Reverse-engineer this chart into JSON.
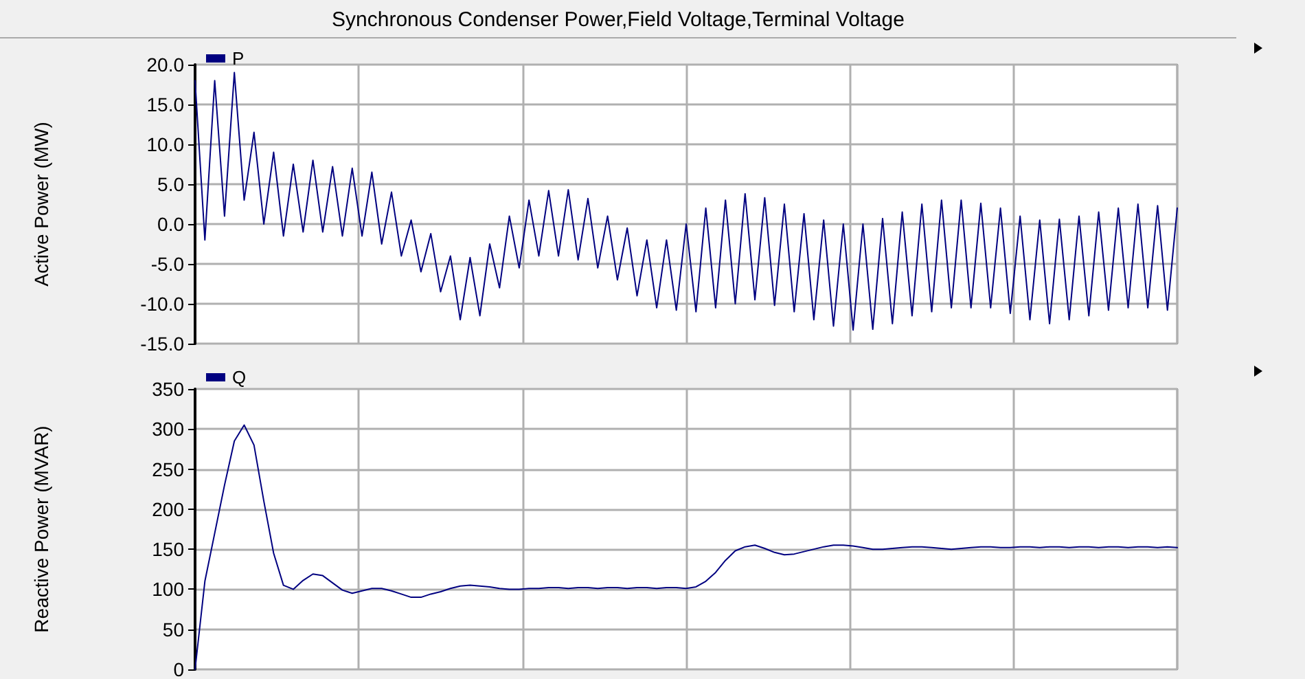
{
  "chart_data": [
    {
      "type": "line",
      "title": "Synchronous Condenser Power,Field Voltage,Terminal Voltage",
      "ylabel": "Active Power (MW)",
      "categories": [
        null,
        null,
        null,
        null,
        null,
        null,
        null,
        null,
        null,
        null,
        null,
        null,
        null,
        null,
        null,
        null,
        null,
        null,
        null,
        null,
        null,
        null,
        null,
        null,
        null,
        null,
        null,
        null,
        null,
        null,
        null,
        null,
        null,
        null,
        null,
        null,
        null,
        null,
        null,
        null,
        null,
        null,
        null,
        null,
        null,
        null,
        null,
        null,
        null,
        null,
        null,
        null,
        null,
        null,
        null,
        null,
        null,
        null,
        null,
        null,
        null,
        null,
        null,
        null,
        null,
        null,
        null,
        null,
        null,
        null,
        null,
        null,
        null,
        null,
        null,
        null,
        null,
        null,
        null,
        null,
        null,
        null,
        null,
        null,
        null,
        null,
        null,
        null,
        null,
        null,
        null,
        null,
        null,
        null,
        null,
        null,
        null,
        null,
        null,
        null,
        null
      ],
      "series": [
        {
          "name": "P",
          "color": "#000080",
          "values": [
            18,
            -2,
            18,
            1,
            19,
            3,
            11.5,
            0,
            9,
            -1.5,
            7.5,
            -1,
            8,
            -1,
            7.2,
            -1.5,
            7,
            -1.5,
            6.5,
            -2.5,
            4,
            -4,
            0.5,
            -6,
            -1.2,
            -8.5,
            -4,
            -12,
            -4.2,
            -11.5,
            -2.5,
            -8,
            1,
            -5.5,
            3,
            -4,
            4.2,
            -4,
            4.3,
            -4.5,
            3.2,
            -5.5,
            1,
            -7,
            -0.5,
            -9,
            -2,
            -10.5,
            -2,
            -10.8,
            0,
            -11,
            2,
            -10.5,
            3,
            -10,
            3.8,
            -9.5,
            3.3,
            -10.2,
            2.5,
            -11,
            1.3,
            -12,
            0.5,
            -12.8,
            0,
            -13.3,
            0,
            -13.2,
            0.7,
            -12.5,
            1.5,
            -11.5,
            2.5,
            -11,
            3,
            -10.5,
            3,
            -10.5,
            2.6,
            -10.5,
            2,
            -11.2,
            1,
            -12,
            0.5,
            -12.5,
            0.6,
            -12,
            1,
            -11.5,
            1.5,
            -10.8,
            2,
            -10.5,
            2.5,
            -10.5,
            2.3,
            -10.8,
            2
          ]
        }
      ],
      "ylim": [
        -15,
        20
      ],
      "yticks": [
        {
          "value": -15,
          "label": "-15.0"
        },
        {
          "value": -10,
          "label": "-10.0"
        },
        {
          "value": -5,
          "label": "-5.0"
        },
        {
          "value": 0,
          "label": "0.0"
        },
        {
          "value": 5,
          "label": "5.0"
        },
        {
          "value": 10,
          "label": "10.0"
        },
        {
          "value": 15,
          "label": "15.0"
        },
        {
          "value": 20,
          "label": "20.0"
        }
      ],
      "tick_labels": "y",
      "grid": true,
      "legend": "top left",
      "marker": "none",
      "line_style": "solid"
    },
    {
      "type": "line",
      "ylabel": "Reactive Power (MVAR)",
      "categories": [
        null,
        null,
        null,
        null,
        null,
        null,
        null,
        null,
        null,
        null,
        null,
        null,
        null,
        null,
        null,
        null,
        null,
        null,
        null,
        null,
        null,
        null,
        null,
        null,
        null,
        null,
        null,
        null,
        null,
        null,
        null,
        null,
        null,
        null,
        null,
        null,
        null,
        null,
        null,
        null,
        null,
        null,
        null,
        null,
        null,
        null,
        null,
        null,
        null,
        null,
        null,
        null,
        null,
        null,
        null,
        null,
        null,
        null,
        null,
        null,
        null,
        null,
        null,
        null,
        null,
        null,
        null,
        null,
        null,
        null,
        null,
        null,
        null,
        null,
        null,
        null,
        null,
        null,
        null,
        null,
        null,
        null,
        null,
        null,
        null,
        null,
        null,
        null,
        null,
        null,
        null,
        null,
        null,
        null,
        null,
        null,
        null,
        null,
        null,
        null,
        null
      ],
      "series": [
        {
          "name": "Q",
          "color": "#000080",
          "values": [
            0,
            110,
            170,
            230,
            285,
            305,
            280,
            210,
            145,
            105,
            100,
            111,
            119,
            117,
            108,
            99,
            95,
            98,
            101,
            101,
            98,
            94,
            90,
            90,
            94,
            97,
            101,
            104,
            105,
            104,
            103,
            101,
            100,
            100,
            101,
            101,
            102,
            102,
            101,
            102,
            102,
            101,
            102,
            102,
            101,
            102,
            102,
            101,
            102,
            102,
            101,
            103,
            110,
            121,
            136,
            148,
            153,
            155,
            151,
            146,
            143,
            144,
            147,
            150,
            153,
            155,
            155,
            154,
            152,
            150,
            150,
            151,
            152,
            153,
            153,
            152,
            151,
            150,
            151,
            152,
            153,
            153,
            152,
            152,
            153,
            153,
            152,
            153,
            153,
            152,
            153,
            153,
            152,
            153,
            153,
            152,
            153,
            153,
            152,
            153,
            152
          ]
        }
      ],
      "ylim": [
        0,
        350
      ],
      "yticks": [
        0,
        50,
        100,
        150,
        200,
        250,
        300,
        350
      ],
      "tick_labels": "y",
      "grid": true,
      "legend": "top left",
      "marker": "none",
      "line_style": "solid"
    }
  ]
}
